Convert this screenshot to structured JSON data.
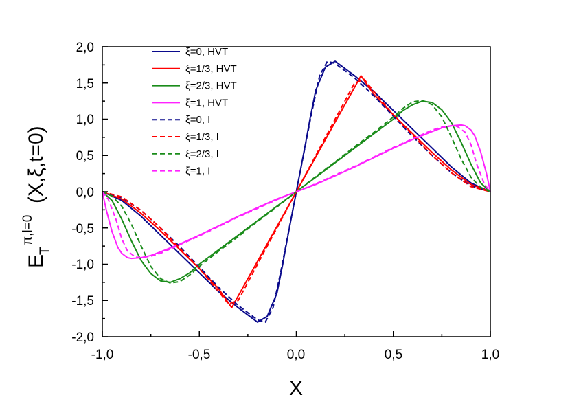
{
  "chart_data": {
    "type": "line",
    "title": "",
    "xlabel": "X",
    "ylabel": {
      "main": "E",
      "subscript": "T",
      "superscript": "π,l=0",
      "arguments": "(X,ξ,t=0)"
    },
    "xlim": [
      -1.0,
      1.0
    ],
    "ylim": [
      -2.0,
      2.0
    ],
    "xticks": [
      "-1,0",
      "-0,5",
      "0,0",
      "0,5",
      "1,0"
    ],
    "yticks": [
      "2,0",
      "1,5",
      "1,0",
      "0,5",
      "0,0",
      "-0,5",
      "-1,0",
      "-1,5",
      "-2,0"
    ],
    "grid": false,
    "legend_position": "top-left",
    "series": [
      {
        "name": "ξ=0, HVT",
        "color": "#0a0a8c",
        "dash": "solid",
        "x": [
          -1.0,
          -0.9,
          -0.8,
          -0.7,
          -0.6,
          -0.5,
          -0.4,
          -0.3,
          -0.25,
          -0.2,
          -0.15,
          -0.1,
          -0.07,
          -0.05,
          -0.03,
          -0.01,
          0.0
        ],
        "y": [
          0.0,
          -0.12,
          -0.34,
          -0.6,
          -0.86,
          -1.12,
          -1.38,
          -1.6,
          -1.7,
          -1.8,
          -1.72,
          -1.4,
          -1.0,
          -0.7,
          -0.42,
          -0.14,
          0.0
        ]
      },
      {
        "name": "ξ=1/3, HVT",
        "color": "#ff0000",
        "dash": "solid",
        "x": [
          -1.0,
          -0.9,
          -0.8,
          -0.7,
          -0.6,
          -0.5,
          -0.4,
          -0.333,
          -0.3,
          -0.2,
          -0.1,
          0.0
        ],
        "y": [
          0.0,
          -0.1,
          -0.3,
          -0.54,
          -0.8,
          -1.06,
          -1.34,
          -1.6,
          -1.44,
          -0.96,
          -0.48,
          0.0
        ]
      },
      {
        "name": "ξ=2/3, HVT",
        "color": "#1a8c1a",
        "dash": "solid",
        "x": [
          -1.0,
          -0.95,
          -0.9,
          -0.85,
          -0.8,
          -0.75,
          -0.7,
          -0.65,
          -0.6,
          -0.55,
          -0.5,
          -0.4,
          -0.3,
          -0.2,
          -0.1,
          0.0
        ],
        "y": [
          0.0,
          -0.12,
          -0.38,
          -0.68,
          -0.95,
          -1.13,
          -1.23,
          -1.25,
          -1.2,
          -1.12,
          -1.0,
          -0.8,
          -0.6,
          -0.4,
          -0.2,
          0.0
        ]
      },
      {
        "name": "ξ=1, HVT",
        "color": "#ff22ff",
        "dash": "solid",
        "x": [
          -1.0,
          -0.98,
          -0.95,
          -0.92,
          -0.9,
          -0.87,
          -0.85,
          -0.8,
          -0.75,
          -0.7,
          -0.6,
          -0.5,
          -0.4,
          -0.3,
          -0.2,
          -0.1,
          0.0
        ],
        "y": [
          0.0,
          -0.25,
          -0.55,
          -0.77,
          -0.85,
          -0.91,
          -0.92,
          -0.91,
          -0.88,
          -0.83,
          -0.72,
          -0.6,
          -0.47,
          -0.34,
          -0.22,
          -0.1,
          0.0
        ]
      },
      {
        "name": "ξ=0, I",
        "color": "#0a0a8c",
        "dash": "dashed",
        "x": [
          -1.0,
          -0.9,
          -0.8,
          -0.7,
          -0.6,
          -0.5,
          -0.4,
          -0.3,
          -0.2,
          -0.16,
          -0.12,
          -0.08,
          -0.04,
          0.0
        ],
        "y": [
          0.0,
          -0.08,
          -0.26,
          -0.5,
          -0.76,
          -1.04,
          -1.32,
          -1.57,
          -1.77,
          -1.8,
          -1.6,
          -1.1,
          -0.55,
          0.0
        ]
      },
      {
        "name": "ξ=1/3, I",
        "color": "#ff0000",
        "dash": "dashed",
        "x": [
          -1.0,
          -0.9,
          -0.8,
          -0.7,
          -0.6,
          -0.5,
          -0.4,
          -0.35,
          -0.3,
          -0.2,
          -0.1,
          0.0
        ],
        "y": [
          0.0,
          -0.07,
          -0.26,
          -0.5,
          -0.78,
          -1.06,
          -1.38,
          -1.55,
          -1.5,
          -1.0,
          -0.5,
          0.0
        ]
      },
      {
        "name": "ξ=2/3, I",
        "color": "#1a8c1a",
        "dash": "dashed",
        "x": [
          -1.0,
          -0.95,
          -0.9,
          -0.85,
          -0.8,
          -0.75,
          -0.7,
          -0.65,
          -0.6,
          -0.55,
          -0.5,
          -0.4,
          -0.3,
          -0.2,
          -0.1,
          0.0
        ],
        "y": [
          0.0,
          -0.06,
          -0.2,
          -0.45,
          -0.75,
          -1.03,
          -1.2,
          -1.26,
          -1.24,
          -1.15,
          -1.03,
          -0.82,
          -0.62,
          -0.41,
          -0.21,
          0.0
        ]
      },
      {
        "name": "ξ=1, I",
        "color": "#ff22ff",
        "dash": "dashed",
        "x": [
          -1.0,
          -0.97,
          -0.93,
          -0.9,
          -0.87,
          -0.83,
          -0.8,
          -0.75,
          -0.7,
          -0.6,
          -0.5,
          -0.4,
          -0.3,
          -0.2,
          -0.1,
          0.0
        ],
        "y": [
          0.0,
          -0.1,
          -0.38,
          -0.65,
          -0.82,
          -0.9,
          -0.91,
          -0.89,
          -0.85,
          -0.73,
          -0.61,
          -0.48,
          -0.35,
          -0.23,
          -0.11,
          0.0
        ]
      }
    ],
    "symmetry": "odd"
  }
}
